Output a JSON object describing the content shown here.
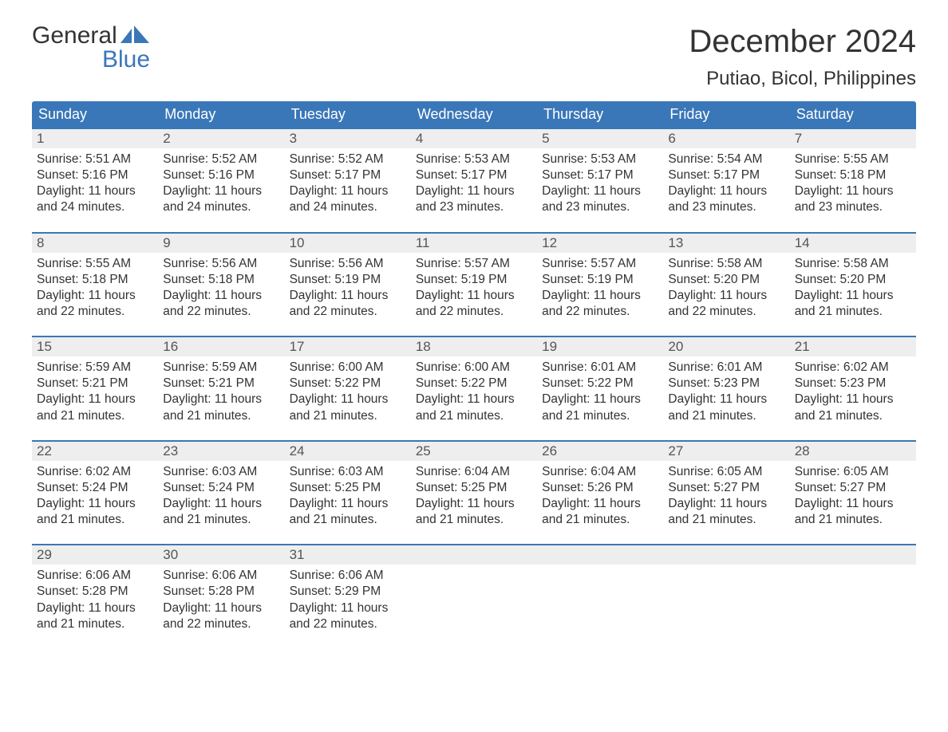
{
  "brand": {
    "word1": "General",
    "word2": "Blue",
    "text_color": "#333333",
    "accent_color": "#3a77b8"
  },
  "title": {
    "month": "December 2024",
    "location": "Putiao, Bicol, Philippines",
    "month_fontsize": 40,
    "location_fontsize": 24
  },
  "colors": {
    "header_bg": "#3a77b8",
    "header_text": "#ffffff",
    "daynum_bg": "#eeeeee",
    "daynum_text": "#555555",
    "body_text": "#333333",
    "week_divider": "#3a77b8",
    "page_bg": "#ffffff"
  },
  "typography": {
    "body_fontsize": 15.5,
    "header_fontsize": 18,
    "daynum_fontsize": 17,
    "font_family": "Arial"
  },
  "layout": {
    "columns": 7,
    "weeks": 5,
    "cell_padding": 6,
    "week_gap": 18
  },
  "day_names": [
    "Sunday",
    "Monday",
    "Tuesday",
    "Wednesday",
    "Thursday",
    "Friday",
    "Saturday"
  ],
  "labels": {
    "sunrise": "Sunrise:",
    "sunset": "Sunset:",
    "daylight": "Daylight:"
  },
  "days": [
    {
      "num": "1",
      "sunrise": "5:51 AM",
      "sunset": "5:16 PM",
      "daylight": "11 hours and 24 minutes."
    },
    {
      "num": "2",
      "sunrise": "5:52 AM",
      "sunset": "5:16 PM",
      "daylight": "11 hours and 24 minutes."
    },
    {
      "num": "3",
      "sunrise": "5:52 AM",
      "sunset": "5:17 PM",
      "daylight": "11 hours and 24 minutes."
    },
    {
      "num": "4",
      "sunrise": "5:53 AM",
      "sunset": "5:17 PM",
      "daylight": "11 hours and 23 minutes."
    },
    {
      "num": "5",
      "sunrise": "5:53 AM",
      "sunset": "5:17 PM",
      "daylight": "11 hours and 23 minutes."
    },
    {
      "num": "6",
      "sunrise": "5:54 AM",
      "sunset": "5:17 PM",
      "daylight": "11 hours and 23 minutes."
    },
    {
      "num": "7",
      "sunrise": "5:55 AM",
      "sunset": "5:18 PM",
      "daylight": "11 hours and 23 minutes."
    },
    {
      "num": "8",
      "sunrise": "5:55 AM",
      "sunset": "5:18 PM",
      "daylight": "11 hours and 22 minutes."
    },
    {
      "num": "9",
      "sunrise": "5:56 AM",
      "sunset": "5:18 PM",
      "daylight": "11 hours and 22 minutes."
    },
    {
      "num": "10",
      "sunrise": "5:56 AM",
      "sunset": "5:19 PM",
      "daylight": "11 hours and 22 minutes."
    },
    {
      "num": "11",
      "sunrise": "5:57 AM",
      "sunset": "5:19 PM",
      "daylight": "11 hours and 22 minutes."
    },
    {
      "num": "12",
      "sunrise": "5:57 AM",
      "sunset": "5:19 PM",
      "daylight": "11 hours and 22 minutes."
    },
    {
      "num": "13",
      "sunrise": "5:58 AM",
      "sunset": "5:20 PM",
      "daylight": "11 hours and 22 minutes."
    },
    {
      "num": "14",
      "sunrise": "5:58 AM",
      "sunset": "5:20 PM",
      "daylight": "11 hours and 21 minutes."
    },
    {
      "num": "15",
      "sunrise": "5:59 AM",
      "sunset": "5:21 PM",
      "daylight": "11 hours and 21 minutes."
    },
    {
      "num": "16",
      "sunrise": "5:59 AM",
      "sunset": "5:21 PM",
      "daylight": "11 hours and 21 minutes."
    },
    {
      "num": "17",
      "sunrise": "6:00 AM",
      "sunset": "5:22 PM",
      "daylight": "11 hours and 21 minutes."
    },
    {
      "num": "18",
      "sunrise": "6:00 AM",
      "sunset": "5:22 PM",
      "daylight": "11 hours and 21 minutes."
    },
    {
      "num": "19",
      "sunrise": "6:01 AM",
      "sunset": "5:22 PM",
      "daylight": "11 hours and 21 minutes."
    },
    {
      "num": "20",
      "sunrise": "6:01 AM",
      "sunset": "5:23 PM",
      "daylight": "11 hours and 21 minutes."
    },
    {
      "num": "21",
      "sunrise": "6:02 AM",
      "sunset": "5:23 PM",
      "daylight": "11 hours and 21 minutes."
    },
    {
      "num": "22",
      "sunrise": "6:02 AM",
      "sunset": "5:24 PM",
      "daylight": "11 hours and 21 minutes."
    },
    {
      "num": "23",
      "sunrise": "6:03 AM",
      "sunset": "5:24 PM",
      "daylight": "11 hours and 21 minutes."
    },
    {
      "num": "24",
      "sunrise": "6:03 AM",
      "sunset": "5:25 PM",
      "daylight": "11 hours and 21 minutes."
    },
    {
      "num": "25",
      "sunrise": "6:04 AM",
      "sunset": "5:25 PM",
      "daylight": "11 hours and 21 minutes."
    },
    {
      "num": "26",
      "sunrise": "6:04 AM",
      "sunset": "5:26 PM",
      "daylight": "11 hours and 21 minutes."
    },
    {
      "num": "27",
      "sunrise": "6:05 AM",
      "sunset": "5:27 PM",
      "daylight": "11 hours and 21 minutes."
    },
    {
      "num": "28",
      "sunrise": "6:05 AM",
      "sunset": "5:27 PM",
      "daylight": "11 hours and 21 minutes."
    },
    {
      "num": "29",
      "sunrise": "6:06 AM",
      "sunset": "5:28 PM",
      "daylight": "11 hours and 21 minutes."
    },
    {
      "num": "30",
      "sunrise": "6:06 AM",
      "sunset": "5:28 PM",
      "daylight": "11 hours and 22 minutes."
    },
    {
      "num": "31",
      "sunrise": "6:06 AM",
      "sunset": "5:29 PM",
      "daylight": "11 hours and 22 minutes."
    }
  ]
}
